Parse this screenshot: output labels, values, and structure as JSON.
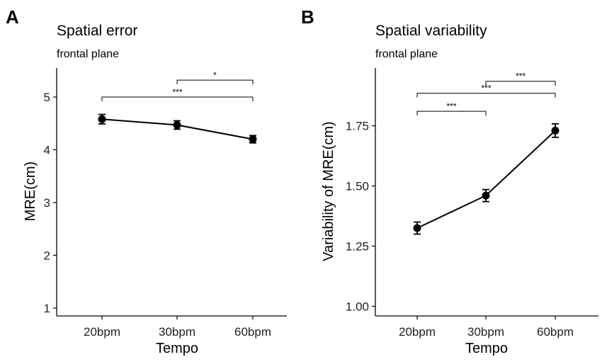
{
  "chart_data": [
    {
      "type": "line",
      "panel_label": "A",
      "title": "Spatial error",
      "subtitle": "frontal plane",
      "xlabel": "Tempo",
      "ylabel": "MRE(cm)",
      "categories": [
        "20bpm",
        "30bpm",
        "60bpm"
      ],
      "series": [
        {
          "name": "MRE",
          "values": [
            4.58,
            4.47,
            4.2
          ],
          "error": [
            0.09,
            0.08,
            0.07
          ]
        }
      ],
      "ylim": [
        0.85,
        5.55
      ],
      "yticks": [
        1,
        2,
        3,
        4,
        5
      ],
      "ytick_labels": [
        "1",
        "2",
        "3",
        "4",
        "5"
      ],
      "grid": false,
      "significance": [
        {
          "from": 1,
          "to": 2,
          "y": 5.32,
          "label": "*"
        },
        {
          "from": 0,
          "to": 2,
          "y": 5.0,
          "label": "***"
        }
      ]
    },
    {
      "type": "line",
      "panel_label": "B",
      "title": "Spatial variability",
      "subtitle": "frontal plane",
      "xlabel": "Tempo",
      "ylabel": "Variability of MRE(cm)",
      "categories": [
        "20bpm",
        "30bpm",
        "60bpm"
      ],
      "series": [
        {
          "name": "Variability of MRE",
          "values": [
            1.325,
            1.46,
            1.73
          ],
          "error": [
            0.025,
            0.025,
            0.028
          ]
        }
      ],
      "ylim": [
        0.96,
        1.99
      ],
      "yticks": [
        1.0,
        1.25,
        1.5,
        1.75
      ],
      "ytick_labels": [
        "1.00",
        "1.25",
        "1.50",
        "1.75"
      ],
      "grid": false,
      "significance": [
        {
          "from": 0,
          "to": 1,
          "y": 1.81,
          "label": "***"
        },
        {
          "from": 0,
          "to": 2,
          "y": 1.885,
          "label": "***"
        },
        {
          "from": 1,
          "to": 2,
          "y": 1.935,
          "label": "***"
        }
      ]
    }
  ]
}
